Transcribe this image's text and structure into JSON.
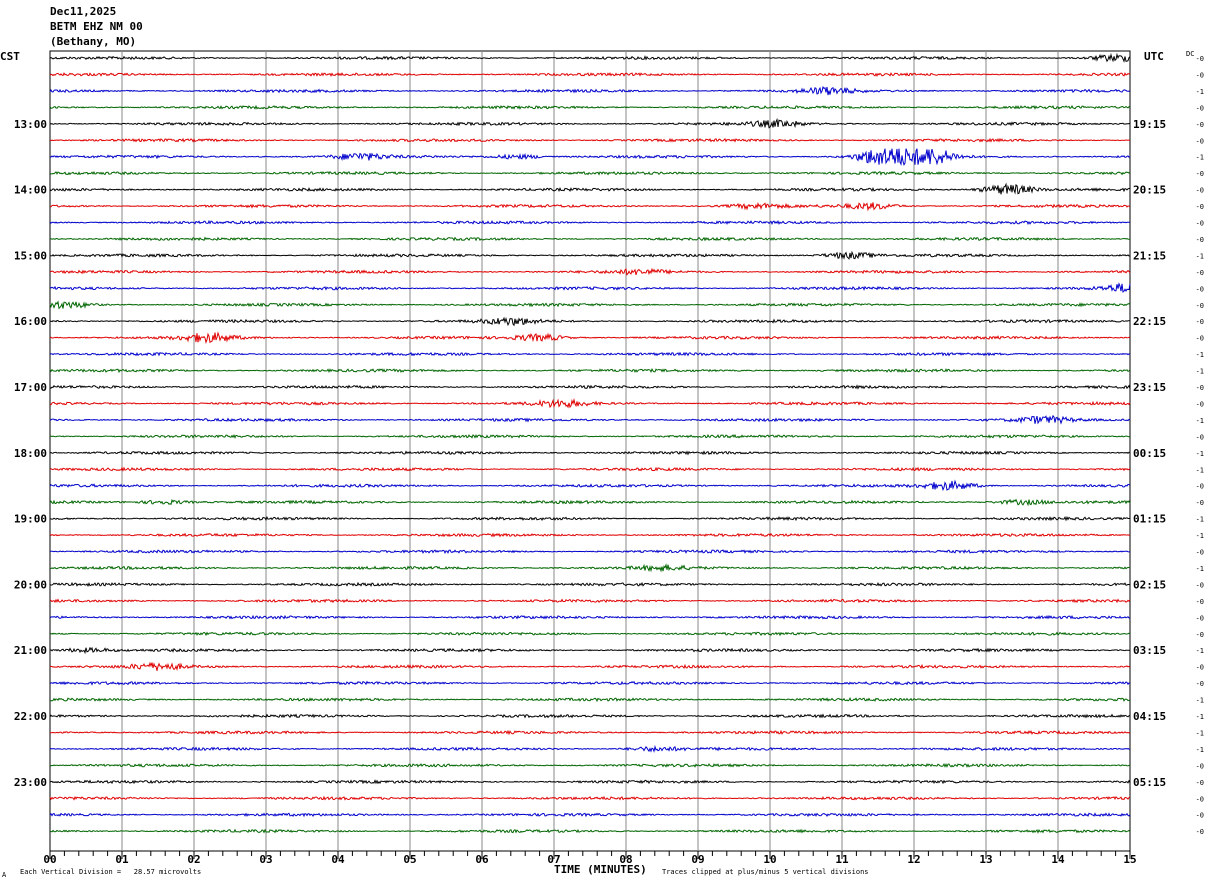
{
  "header": {
    "date": "Dec11,2025",
    "station": "BETM EHZ NM 00",
    "location": "(Bethany, MO)",
    "left_timezone": "CST",
    "right_timezone": "UTC",
    "dc_label": "DC"
  },
  "footer": {
    "xlabel": "TIME (MINUTES)",
    "scale_note": "Each Vertical Division =   28.57 microvolts",
    "clip_note": "Traces clipped at plus/minus 5 vertical divisions",
    "logo_mark": "A"
  },
  "chart_data": {
    "type": "line",
    "title": "",
    "xlabel": "TIME (MINUTES)",
    "ylabel": "",
    "xlim": [
      0,
      15
    ],
    "x_ticks": [
      "00",
      "01",
      "02",
      "03",
      "04",
      "05",
      "06",
      "07",
      "08",
      "09",
      "10",
      "11",
      "12",
      "13",
      "14",
      "15"
    ],
    "trace_minutes": 15,
    "trace_count": 48,
    "trace_colors": [
      "#000000",
      "#e00000",
      "#0000cc",
      "#006600"
    ],
    "left_hour_labels": [
      "13:00",
      "14:00",
      "15:00",
      "16:00",
      "17:00",
      "18:00",
      "19:00",
      "20:00",
      "21:00",
      "22:00",
      "23:00"
    ],
    "left_label_trace_start": 4,
    "right_hour_labels": [
      "19:15",
      "20:15",
      "21:15",
      "22:15",
      "23:15",
      "00:15",
      "01:15",
      "02:15",
      "03:15",
      "04:15",
      "05:15"
    ],
    "right_label_trace_start": 4,
    "dc_offsets": [
      "-0",
      "-0",
      "-1",
      "-0",
      "-0",
      "-0",
      "-1",
      "-0",
      "-0",
      "-0",
      "-0",
      "-0",
      "-1",
      "-0",
      "-0",
      "-0",
      "-0",
      "-0",
      "-1",
      "-1",
      "-0",
      "-0",
      "-1",
      "-0",
      "-1",
      "-1",
      "-0",
      "-0",
      "-1",
      "-1",
      "-0",
      "-1",
      "-0",
      "-0",
      "-0",
      "-0",
      "-1",
      "-0",
      "-0",
      "-1",
      "-1",
      "-1",
      "-1",
      "-0",
      "-0",
      "-0",
      "-0",
      "-0"
    ],
    "events": [
      {
        "trace": 0,
        "minute": 14.8,
        "amp": 3
      },
      {
        "trace": 2,
        "minute": 10.8,
        "amp": 3
      },
      {
        "trace": 4,
        "minute": 10.1,
        "amp": 3
      },
      {
        "trace": 6,
        "minute": 4.3,
        "amp": 3
      },
      {
        "trace": 6,
        "minute": 6.5,
        "amp": 2
      },
      {
        "trace": 6,
        "minute": 11.6,
        "amp": 10
      },
      {
        "trace": 6,
        "minute": 12.2,
        "amp": 8
      },
      {
        "trace": 8,
        "minute": 13.3,
        "amp": 5
      },
      {
        "trace": 9,
        "minute": 11.4,
        "amp": 3
      },
      {
        "trace": 9,
        "minute": 9.8,
        "amp": 2
      },
      {
        "trace": 12,
        "minute": 11.1,
        "amp": 3
      },
      {
        "trace": 13,
        "minute": 8.2,
        "amp": 2
      },
      {
        "trace": 14,
        "minute": 15.0,
        "amp": 4
      },
      {
        "trace": 15,
        "minute": 0.2,
        "amp": 3
      },
      {
        "trace": 16,
        "minute": 6.4,
        "amp": 3
      },
      {
        "trace": 17,
        "minute": 2.2,
        "amp": 4
      },
      {
        "trace": 17,
        "minute": 6.8,
        "amp": 3
      },
      {
        "trace": 21,
        "minute": 7.1,
        "amp": 3
      },
      {
        "trace": 22,
        "minute": 13.8,
        "amp": 3
      },
      {
        "trace": 26,
        "minute": 12.5,
        "amp": 4
      },
      {
        "trace": 27,
        "minute": 1.6,
        "amp": 2
      },
      {
        "trace": 27,
        "minute": 13.5,
        "amp": 2
      },
      {
        "trace": 31,
        "minute": 8.5,
        "amp": 2
      },
      {
        "trace": 36,
        "minute": 0.5,
        "amp": 2
      },
      {
        "trace": 37,
        "minute": 1.5,
        "amp": 3
      },
      {
        "trace": 42,
        "minute": 8.4,
        "amp": 2
      }
    ]
  }
}
